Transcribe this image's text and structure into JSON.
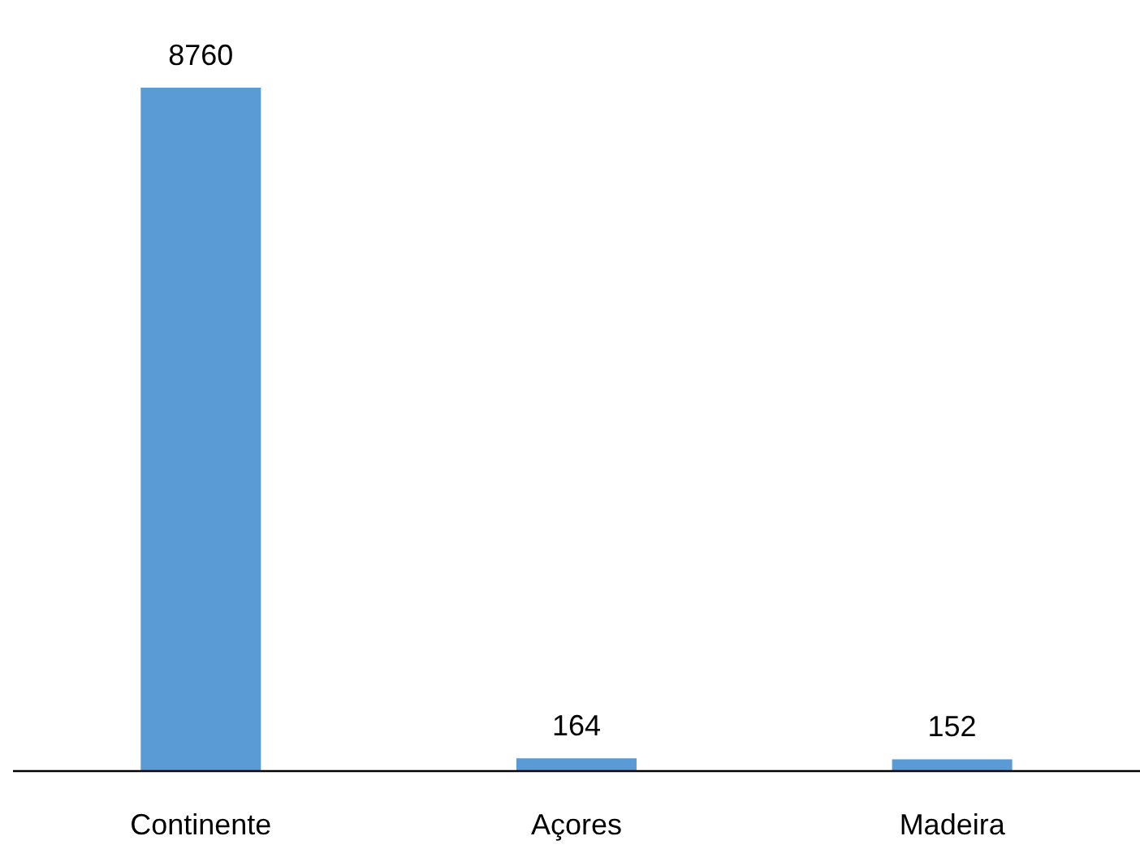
{
  "chart_data": {
    "type": "bar",
    "categories": [
      "Continente",
      "Açores",
      "Madeira"
    ],
    "values": [
      8760,
      164,
      152
    ],
    "color": "#5b9bd5",
    "data_labels": true
  }
}
